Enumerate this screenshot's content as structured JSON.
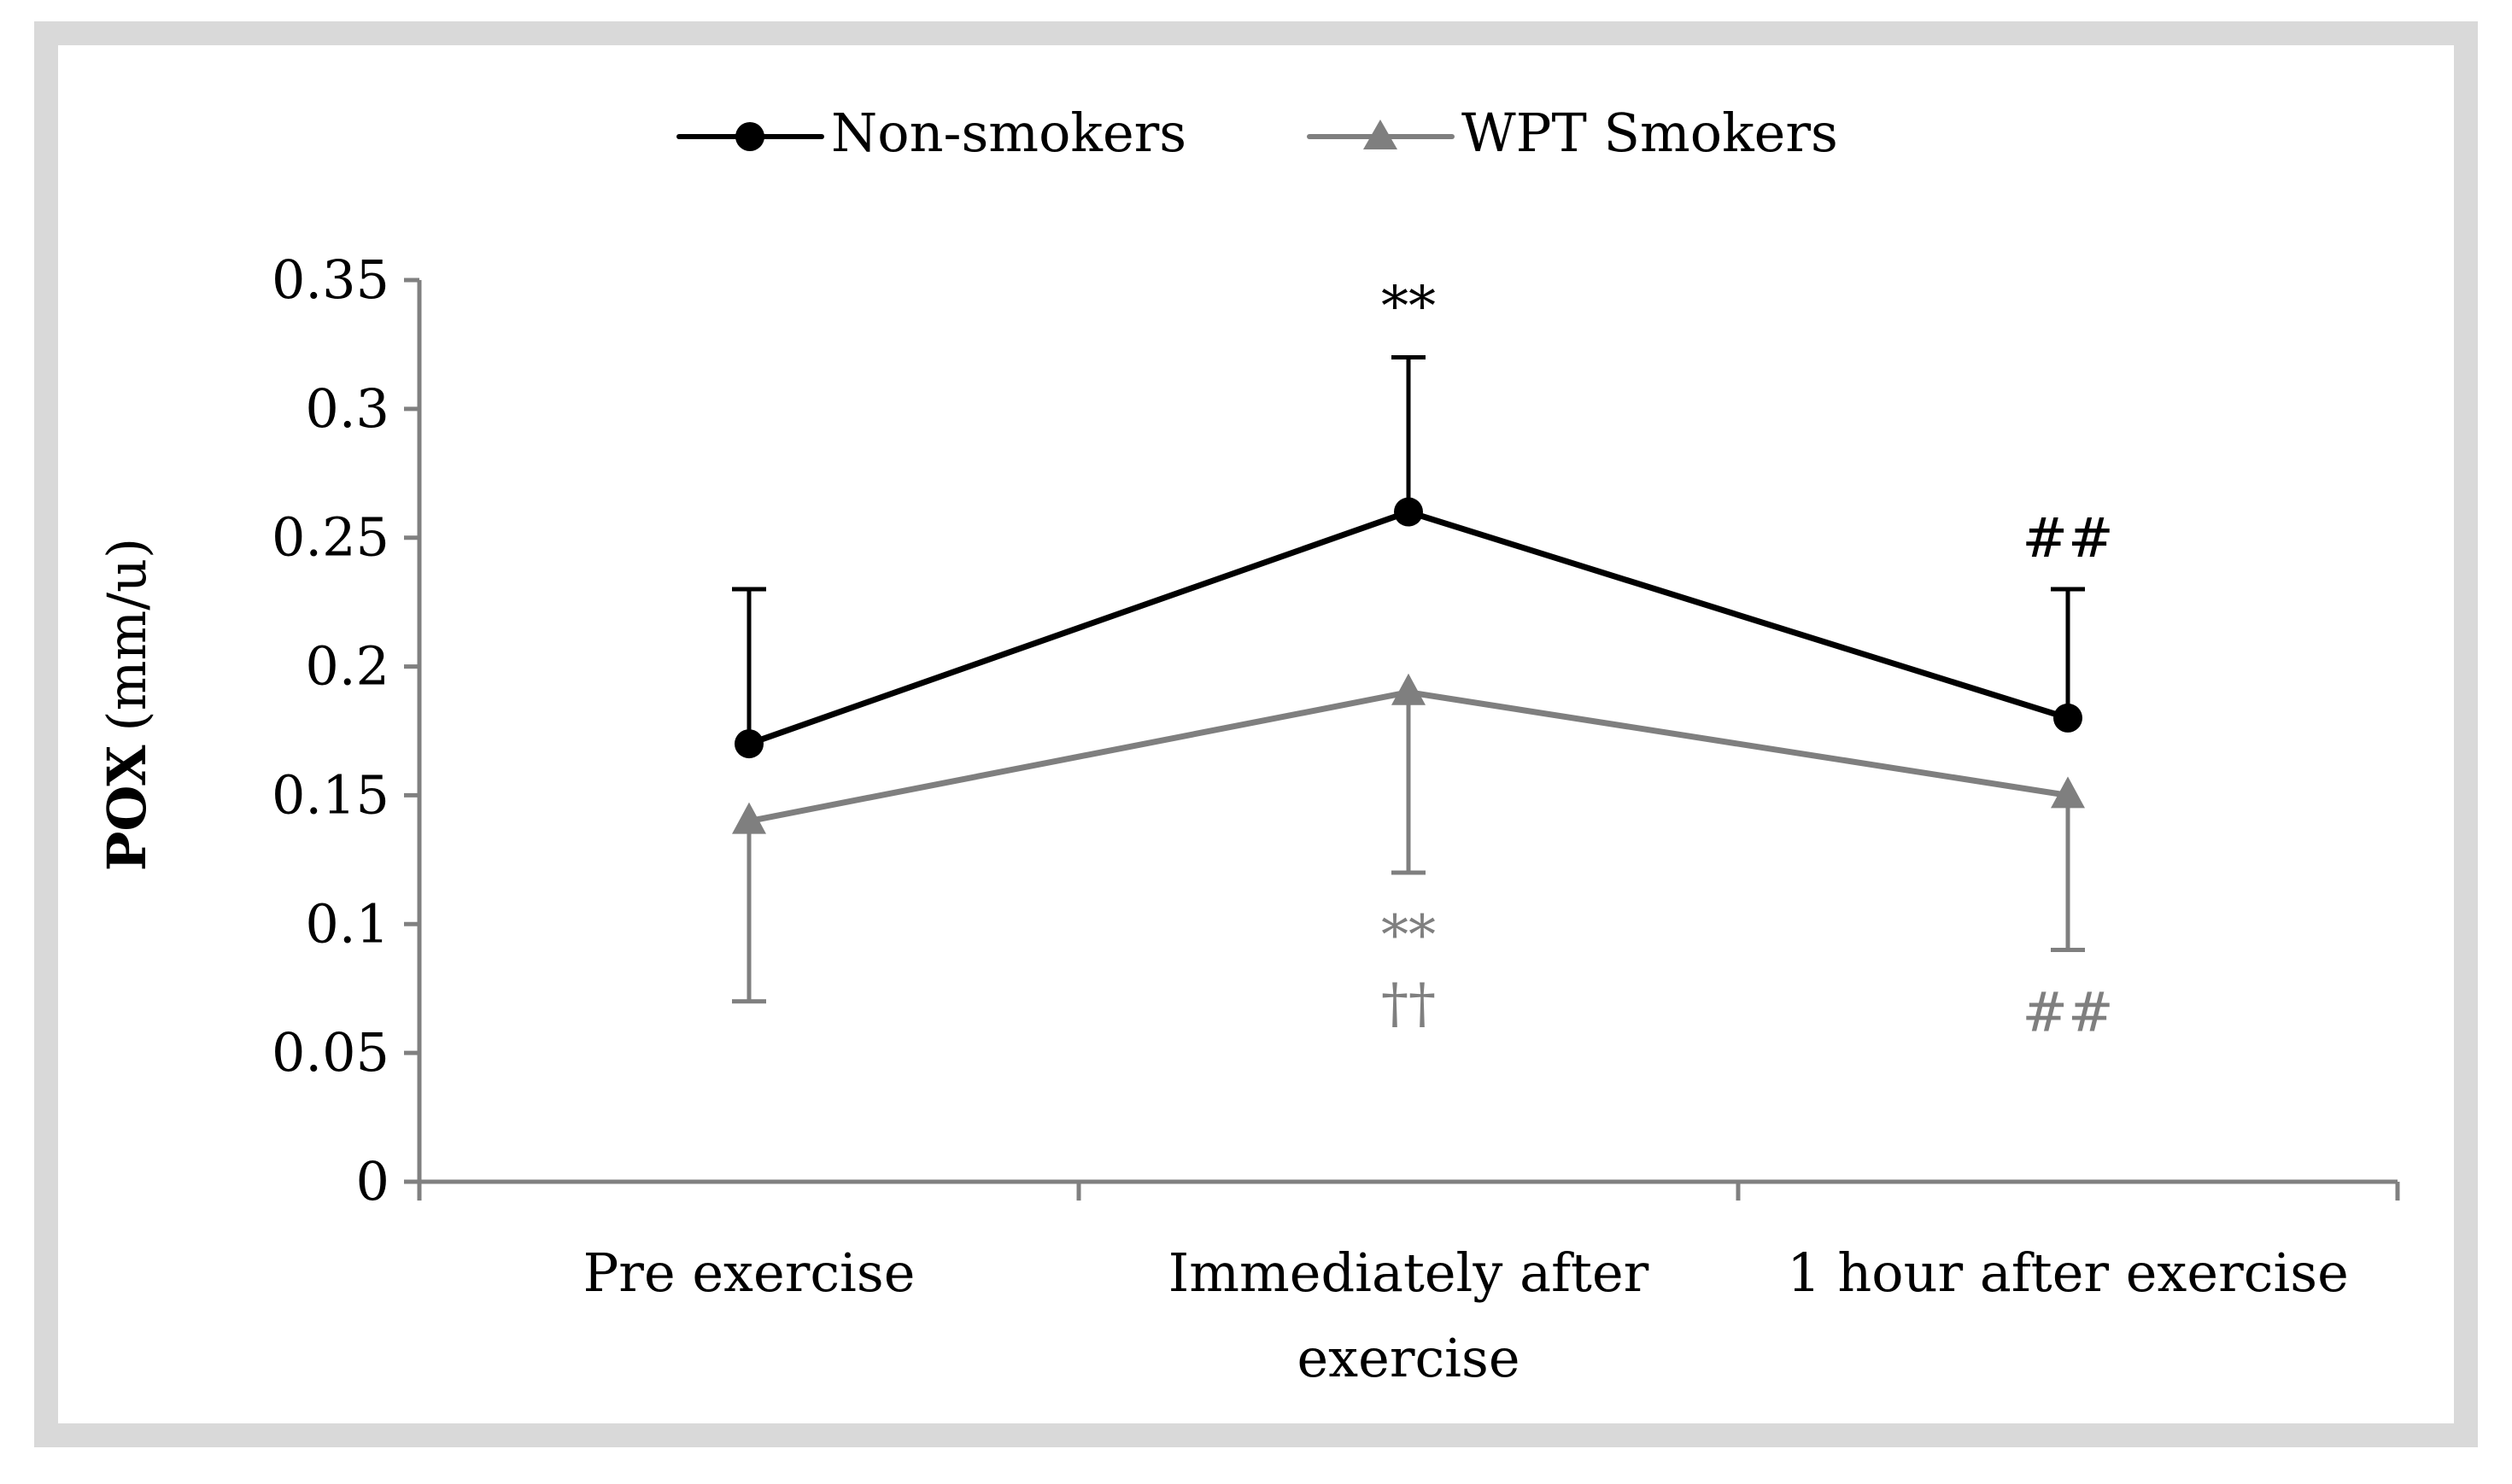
{
  "colors": {
    "non_smokers": "#000000",
    "smokers": "#7f7f7f",
    "axis": "#808080",
    "frame": "#d9d9d9"
  },
  "chart_data": {
    "type": "line",
    "title": "",
    "xlabel": "",
    "ylabel_bold": "POX",
    "ylabel_unit": "(mm/u)",
    "ylim": [
      0,
      0.35
    ],
    "y_ticks": [
      0,
      0.05,
      0.1,
      0.15,
      0.2,
      0.25,
      0.3,
      0.35
    ],
    "y_tick_labels": [
      "0",
      "0.05",
      "0.1",
      "0.15",
      "0.2",
      "0.25",
      "0.3",
      "0.35"
    ],
    "categories": [
      "Pre exercise",
      "Immediately after exercise",
      "1 hour after exercise"
    ],
    "category_label_lines": [
      [
        "Pre exercise"
      ],
      [
        "Immediately after",
        "exercise"
      ],
      [
        "1 hour after exercise"
      ]
    ],
    "legend_position": "top-center",
    "series": [
      {
        "name": "Non-smokers",
        "marker": "circle",
        "values": [
          0.17,
          0.26,
          0.18
        ],
        "error_upper": [
          0.23,
          0.32,
          0.23
        ],
        "annotations": [
          {
            "category": 1,
            "text": "**",
            "placement": "above"
          },
          {
            "category": 2,
            "text": "##",
            "placement": "above"
          }
        ]
      },
      {
        "name": "WPT Smokers",
        "marker": "triangle",
        "values": [
          0.14,
          0.19,
          0.15
        ],
        "error_lower": [
          0.07,
          0.12,
          0.09
        ],
        "annotations": [
          {
            "category": 1,
            "text": "**",
            "placement": "below"
          },
          {
            "category": 1,
            "text": "††",
            "placement": "below2"
          },
          {
            "category": 2,
            "text": "##",
            "placement": "below"
          }
        ]
      }
    ]
  }
}
